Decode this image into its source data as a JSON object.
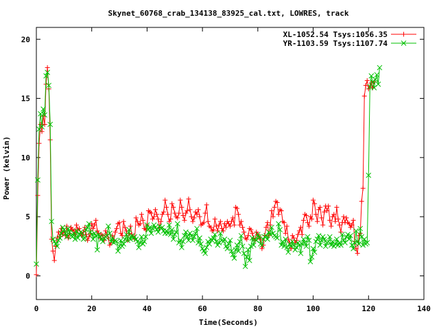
{
  "chart_data": {
    "type": "line",
    "title": "Skynet_60768_crab_134138_83925_cal.txt, LOWRES, track",
    "xlabel": "Time(Seconds)",
    "ylabel": "Power (kelvin)",
    "xlim": [
      0,
      140
    ],
    "ylim": [
      -2,
      21
    ],
    "xticks": [
      0,
      20,
      40,
      60,
      80,
      100,
      120,
      140
    ],
    "yticks": [
      0,
      5,
      10,
      15,
      20
    ],
    "grid": false,
    "legend": "top-right",
    "sample_step": 0.5,
    "series": [
      {
        "name": "XL-1052.54 Tsys:1056.35",
        "color": "#ff0000",
        "marker": "plus",
        "x_start": 0,
        "values": [
          0.1,
          6.8,
          11.2,
          12.8,
          12.2,
          13.5,
          12.8,
          16.2,
          17.6,
          15.8,
          11.5,
          3.1,
          2.1,
          1.3,
          2.5,
          3.2,
          3.7,
          3.3,
          4.0,
          3.5,
          3.8,
          3.4,
          4.2,
          3.2,
          3.6,
          4.1,
          3.9,
          3.8,
          3.5,
          4.3,
          3.9,
          4.0,
          3.6,
          3.4,
          3.7,
          4.1,
          3.5,
          3.0,
          3.3,
          3.6,
          4.4,
          4.0,
          4.3,
          4.7,
          3.8,
          3.6,
          3.2,
          3.5,
          3.4,
          3.0,
          3.8,
          3.5,
          3.2,
          2.6,
          2.8,
          3.4,
          3.0,
          3.7,
          4.0,
          4.4,
          4.5,
          3.6,
          3.4,
          4.6,
          4.1,
          3.8,
          3.0,
          3.6,
          4.2,
          3.5,
          3.3,
          3.1,
          4.9,
          4.6,
          4.3,
          4.4,
          5.2,
          4.7,
          4.0,
          3.9,
          4.3,
          5.5,
          5.4,
          5.3,
          4.8,
          5.0,
          5.6,
          5.2,
          4.8,
          4.1,
          4.6,
          5.2,
          5.4,
          6.4,
          5.8,
          5.2,
          4.6,
          4.8,
          6.1,
          5.8,
          5.3,
          5.0,
          4.9,
          5.3,
          6.4,
          5.8,
          5.1,
          4.7,
          5.3,
          5.5,
          6.5,
          5.6,
          5.0,
          4.6,
          4.9,
          5.4,
          5.2,
          5.6,
          5.0,
          4.3,
          4.4,
          4.5,
          5.3,
          6.0,
          4.6,
          4.2,
          4.1,
          3.8,
          3.9,
          4.8,
          4.2,
          3.8,
          4.3,
          4.6,
          4.0,
          3.8,
          4.4,
          4.1,
          4.6,
          4.4,
          4.2,
          4.6,
          4.9,
          4.3,
          5.8,
          5.7,
          5.2,
          4.3,
          4.6,
          4.1,
          3.7,
          3.2,
          3.1,
          3.4,
          4.0,
          3.9,
          3.6,
          3.2,
          3.0,
          3.7,
          3.5,
          3.3,
          3.1,
          2.3,
          2.6,
          3.4,
          4.1,
          4.5,
          3.4,
          4.3,
          5.5,
          5.0,
          5.8,
          6.3,
          6.2,
          5.2,
          5.6,
          5.5,
          4.6,
          4.5,
          3.6,
          4.2,
          3.1,
          2.8,
          2.3,
          3.4,
          3.2,
          2.8,
          3.0,
          3.5,
          3.8,
          4.1,
          3.5,
          4.7,
          5.2,
          5.1,
          4.5,
          4.2,
          5.0,
          4.8,
          6.4,
          6.1,
          5.2,
          4.6,
          5.6,
          5.8,
          4.9,
          4.3,
          5.4,
          5.9,
          5.5,
          5.9,
          4.7,
          4.2,
          5.0,
          5.2,
          4.6,
          5.8,
          4.8,
          4.3,
          3.7,
          4.5,
          5.0,
          4.5,
          4.9,
          4.5,
          4.4,
          4.1,
          4.3,
          4.7,
          2.9,
          2.3,
          1.9,
          3.4,
          3.6,
          6.3,
          7.4,
          15.2,
          16.1,
          16.5,
          15.8,
          16.0,
          16.3,
          15.9,
          16.4
        ]
      },
      {
        "name": "YR-1103.59 Tsys:1107.74",
        "color": "#00c000",
        "marker": "x",
        "x_start": 0,
        "values": [
          1.0,
          8.1,
          12.4,
          13.7,
          12.6,
          14.1,
          13.6,
          16.9,
          17.2,
          16.1,
          12.8,
          4.6,
          3.1,
          2.9,
          2.7,
          2.5,
          3.0,
          3.2,
          3.6,
          4.1,
          3.9,
          3.6,
          3.3,
          4.0,
          3.7,
          3.4,
          3.3,
          3.6,
          3.1,
          3.8,
          3.2,
          3.5,
          3.7,
          3.6,
          3.1,
          3.2,
          3.9,
          4.1,
          4.4,
          3.7,
          3.5,
          3.1,
          3.6,
          3.4,
          2.2,
          3.5,
          3.3,
          3.1,
          2.9,
          3.2,
          3.3,
          3.4,
          4.2,
          3.6,
          2.9,
          3.2,
          2.8,
          3.0,
          2.9,
          2.1,
          2.5,
          3.0,
          2.5,
          2.7,
          3.1,
          3.5,
          3.0,
          3.9,
          3.1,
          3.4,
          3.2,
          3.3,
          3.1,
          2.9,
          2.4,
          2.8,
          3.3,
          2.7,
          2.9,
          3.3,
          4.3,
          3.9,
          4.1,
          3.6,
          4.0,
          4.3,
          4.1,
          3.9,
          3.7,
          4.2,
          4.0,
          4.1,
          3.8,
          3.6,
          3.8,
          3.6,
          4.3,
          3.5,
          3.9,
          3.1,
          3.5,
          3.7,
          4.4,
          2.8,
          3.0,
          2.4,
          2.9,
          3.4,
          3.7,
          3.3,
          3.0,
          3.6,
          3.4,
          3.0,
          3.3,
          3.6,
          4.0,
          2.8,
          3.2,
          2.7,
          2.3,
          2.1,
          1.9,
          2.4,
          2.9,
          2.7,
          3.1,
          3.0,
          3.2,
          3.5,
          2.9,
          2.6,
          2.8,
          3.6,
          3.0,
          2.9,
          3.1,
          2.5,
          2.3,
          2.7,
          3.0,
          2.1,
          1.8,
          1.5,
          2.2,
          2.6,
          2.1,
          2.9,
          3.4,
          2.5,
          1.9,
          0.8,
          1.6,
          2.2,
          1.3,
          2.5,
          3.2,
          2.6,
          3.1,
          3.0,
          3.5,
          3.3,
          2.7,
          2.6,
          3.1,
          3.3,
          3.4,
          3.1,
          3.7,
          3.5,
          4.1,
          3.6,
          3.4,
          3.3,
          3.2,
          4.4,
          3.9,
          2.6,
          2.9,
          2.5,
          3.1,
          2.4,
          2.0,
          2.7,
          2.5,
          2.9,
          2.6,
          2.2,
          2.4,
          2.8,
          2.6,
          1.9,
          2.7,
          3.1,
          2.8,
          2.5,
          3.3,
          3.0,
          1.2,
          1.6,
          2.3,
          2.0,
          2.9,
          3.1,
          3.4,
          2.6,
          3.0,
          3.3,
          3.1,
          2.5,
          2.8,
          2.9,
          3.3,
          2.6,
          2.9,
          2.5,
          2.7,
          3.1,
          2.6,
          2.8,
          2.6,
          3.5,
          3.0,
          2.8,
          3.3,
          3.5,
          3.1,
          3.4,
          2.6,
          2.3,
          2.8,
          3.8,
          2.9,
          2.7,
          4.0,
          3.3,
          2.6,
          3.1,
          2.7,
          2.8,
          8.5,
          16.0,
          16.9,
          16.4,
          15.9,
          16.6,
          17.0,
          16.2,
          17.6
        ]
      }
    ]
  }
}
